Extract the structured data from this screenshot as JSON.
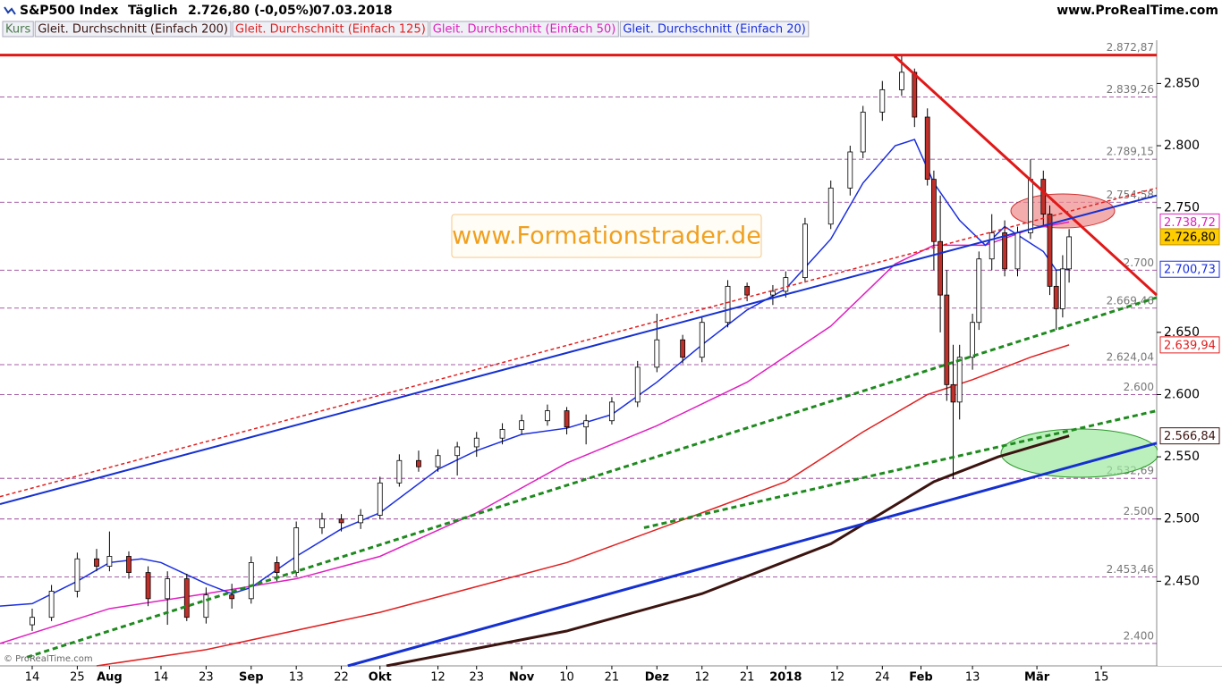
{
  "chart_data": {
    "type": "candlestick",
    "title": "S&P500 Index",
    "period": "Täglich",
    "last": "2.726,80 (-0,05%)",
    "date": "07.03.2018",
    "source": "www.ProRealTime.com",
    "watermark": "www.Formationstrader.de",
    "copyright": "© ProRealTime.com",
    "xlim": [
      -5,
      174.6
    ],
    "ylim": [
      2382,
      2874
    ],
    "xticks": [
      {
        "value": 0,
        "label": "14"
      },
      {
        "value": 7,
        "label": "25"
      },
      {
        "value": 12,
        "label": "Aug"
      },
      {
        "value": 20,
        "label": "14"
      },
      {
        "value": 27,
        "label": "23"
      },
      {
        "value": 34,
        "label": "Sep"
      },
      {
        "value": 41,
        "label": "13"
      },
      {
        "value": 48,
        "label": "22"
      },
      {
        "value": 54,
        "label": "Okt"
      },
      {
        "value": 63,
        "label": "12"
      },
      {
        "value": 69,
        "label": "23"
      },
      {
        "value": 76,
        "label": "Nov"
      },
      {
        "value": 83,
        "label": "10"
      },
      {
        "value": 90,
        "label": "21"
      },
      {
        "value": 97,
        "label": "Dez"
      },
      {
        "value": 104,
        "label": "12"
      },
      {
        "value": 111,
        "label": "21"
      },
      {
        "value": 117,
        "label": "2018"
      },
      {
        "value": 125,
        "label": "12"
      },
      {
        "value": 132,
        "label": "24"
      },
      {
        "value": 138,
        "label": "Feb"
      },
      {
        "value": 146,
        "label": "13"
      },
      {
        "value": 156,
        "label": "Mär"
      },
      {
        "value": 166,
        "label": "15"
      }
    ],
    "yticks": [
      {
        "value": 2850,
        "label": "2.850"
      },
      {
        "value": 2800,
        "label": "2.800"
      },
      {
        "value": 2750,
        "label": "2.750"
      },
      {
        "value": 2650,
        "label": "2.650"
      },
      {
        "value": 2600,
        "label": "2.600"
      },
      {
        "value": 2550,
        "label": "2.550"
      },
      {
        "value": 2500,
        "label": "2.500"
      },
      {
        "value": 2450,
        "label": "2.450"
      }
    ],
    "levels": [
      {
        "value": 2872.87,
        "label": "2.872,87"
      },
      {
        "value": 2839.26,
        "label": "2.839,26"
      },
      {
        "value": 2789.15,
        "label": "2.789,15"
      },
      {
        "value": 2754.58,
        "label": "2.754,58"
      },
      {
        "value": 2700,
        "label": "2.700"
      },
      {
        "value": 2669.46,
        "label": "2.669,46"
      },
      {
        "value": 2624.04,
        "label": "2.624,04"
      },
      {
        "value": 2600,
        "label": "2.600"
      },
      {
        "value": 2532.69,
        "label": "2.532,69"
      },
      {
        "value": 2500,
        "label": "2.500"
      },
      {
        "value": 2453.46,
        "label": "2.453,46"
      },
      {
        "value": 2400,
        "label": "2.400"
      }
    ],
    "level_color": "#8a2a8a",
    "candles": {
      "name": "Kurs",
      "up_color": "#ffffff",
      "down_color": "#c0302a",
      "last_label": "2.726,80",
      "x": [
        0,
        3,
        7,
        10,
        12,
        15,
        18,
        21,
        24,
        27,
        31,
        34,
        38,
        41,
        45,
        48,
        51,
        54,
        57,
        60,
        63,
        66,
        69,
        73,
        76,
        80,
        83,
        86,
        90,
        94,
        97,
        101,
        104,
        108,
        111,
        115,
        117,
        120,
        124,
        127,
        129,
        132,
        135,
        137,
        139,
        140,
        141,
        142,
        143,
        144,
        146,
        147,
        149,
        151,
        153,
        155,
        157,
        158,
        159,
        160,
        161
      ],
      "open": [
        2415,
        2421,
        2442,
        2468,
        2462,
        2470,
        2457,
        2436,
        2452,
        2421,
        2439,
        2436,
        2465,
        2457,
        2493,
        2500,
        2497,
        2503,
        2529,
        2547,
        2542,
        2551,
        2558,
        2565,
        2572,
        2579,
        2587,
        2574,
        2579,
        2594,
        2622,
        2644,
        2630,
        2658,
        2687,
        2680,
        2683,
        2694,
        2737,
        2766,
        2795,
        2827,
        2845,
        2859,
        2823,
        2773,
        2723,
        2680,
        2608,
        2594,
        2630,
        2658,
        2709,
        2730,
        2701,
        2730,
        2773,
        2745,
        2687,
        2669,
        2701
      ],
      "high": [
        2428,
        2447,
        2473,
        2476,
        2490,
        2474,
        2462,
        2458,
        2456,
        2445,
        2448,
        2470,
        2470,
        2498,
        2505,
        2504,
        2508,
        2534,
        2552,
        2555,
        2556,
        2562,
        2570,
        2577,
        2584,
        2592,
        2590,
        2584,
        2598,
        2627,
        2665,
        2648,
        2662,
        2692,
        2690,
        2688,
        2699,
        2742,
        2772,
        2800,
        2832,
        2852,
        2873,
        2862,
        2830,
        2780,
        2760,
        2700,
        2640,
        2640,
        2665,
        2715,
        2745,
        2740,
        2735,
        2789,
        2780,
        2752,
        2700,
        2712,
        2733
      ],
      "low": [
        2410,
        2418,
        2437,
        2458,
        2458,
        2452,
        2430,
        2415,
        2418,
        2416,
        2428,
        2432,
        2450,
        2454,
        2488,
        2490,
        2492,
        2500,
        2526,
        2538,
        2538,
        2535,
        2550,
        2560,
        2568,
        2575,
        2568,
        2560,
        2576,
        2590,
        2618,
        2625,
        2626,
        2654,
        2675,
        2672,
        2678,
        2690,
        2733,
        2760,
        2790,
        2820,
        2840,
        2815,
        2768,
        2700,
        2650,
        2595,
        2532,
        2580,
        2620,
        2652,
        2700,
        2695,
        2695,
        2725,
        2735,
        2680,
        2652,
        2662,
        2690
      ],
      "close": [
        2421,
        2442,
        2468,
        2462,
        2470,
        2457,
        2436,
        2452,
        2421,
        2439,
        2436,
        2465,
        2457,
        2493,
        2500,
        2497,
        2503,
        2529,
        2547,
        2542,
        2551,
        2558,
        2565,
        2572,
        2579,
        2587,
        2574,
        2579,
        2594,
        2622,
        2644,
        2630,
        2658,
        2687,
        2680,
        2683,
        2694,
        2737,
        2766,
        2795,
        2827,
        2845,
        2859,
        2823,
        2773,
        2723,
        2680,
        2608,
        2594,
        2630,
        2658,
        2709,
        2730,
        2701,
        2730,
        2773,
        2745,
        2687,
        2669,
        2701,
        2726.8
      ]
    },
    "series": [
      {
        "name": "Gleit. Durchschnitt (Einfach 200)",
        "color": "#3b1410",
        "width": 3,
        "badge_text": "#3b1410",
        "last_label": "2.566,84",
        "x": [
          55,
          83,
          104,
          124,
          140,
          150,
          161
        ],
        "values": [
          2382,
          2410,
          2440,
          2480,
          2530,
          2550,
          2566.84
        ]
      },
      {
        "name": "Gleit. Durchschnitt (Einfach 125)",
        "color": "#e02020",
        "width": 1.5,
        "badge_text": "#e02020",
        "last_label": "2.639,94",
        "x": [
          10,
          27,
          54,
          83,
          104,
          117,
          129,
          139,
          146,
          155,
          161
        ],
        "values": [
          2382,
          2395,
          2425,
          2465,
          2505,
          2530,
          2570,
          2600,
          2612,
          2630,
          2639.94
        ]
      },
      {
        "name": "Gleit. Durchschnitt (Einfach 50)",
        "color": "#e020c0",
        "width": 1.5,
        "badge_text": "#e020c0",
        "last_label": "2.738,72",
        "x": [
          -5,
          12,
          27,
          41,
          54,
          69,
          83,
          97,
          111,
          124,
          134,
          140,
          148,
          155,
          161
        ],
        "values": [
          2400,
          2428,
          2440,
          2452,
          2470,
          2505,
          2545,
          2575,
          2610,
          2655,
          2705,
          2720,
          2720,
          2733,
          2738.72
        ]
      },
      {
        "name": "Gleit. Durchschnitt (Einfach 20)",
        "color": "#1a2ee0",
        "width": 1.5,
        "badge_text": "#1a2ee0",
        "last_label": "2.700,73",
        "x": [
          -5,
          0,
          7,
          12,
          17,
          20,
          27,
          31,
          34,
          41,
          48,
          54,
          63,
          69,
          76,
          83,
          90,
          97,
          104,
          111,
          117,
          124,
          129,
          134,
          137,
          140,
          144,
          148,
          151,
          154,
          157,
          159,
          161
        ],
        "values": [
          2430,
          2432,
          2450,
          2465,
          2468,
          2465,
          2448,
          2440,
          2445,
          2470,
          2492,
          2505,
          2540,
          2555,
          2568,
          2573,
          2584,
          2610,
          2640,
          2668,
          2685,
          2725,
          2770,
          2800,
          2805,
          2770,
          2740,
          2720,
          2735,
          2725,
          2715,
          2700,
          2700.73
        ]
      }
    ],
    "trendlines": [
      {
        "color": "#e01818",
        "width": 3,
        "dash": "none",
        "x": [
          -5,
          174.6
        ],
        "values": [
          2872.87,
          2872.87
        ]
      },
      {
        "color": "#e01818",
        "width": 3,
        "dash": "none",
        "x": [
          133.9,
          174.6
        ],
        "values": [
          2872,
          2680
        ]
      },
      {
        "color": "#1530d0",
        "width": 2,
        "dash": "none",
        "x": [
          -5,
          174.6
        ],
        "values": [
          2512,
          2760
        ]
      },
      {
        "color": "#e02020",
        "width": 1.5,
        "dash": "4 3",
        "x": [
          -5,
          174.6
        ],
        "values": [
          2518,
          2766
        ]
      },
      {
        "color": "#1f8a1f",
        "width": 3,
        "dash": "6 4",
        "x": [
          -0.8,
          174.6
        ],
        "values": [
          2389,
          2678
        ]
      },
      {
        "color": "#1f8a1f",
        "width": 3,
        "dash": "6 4",
        "x": [
          95,
          174.6
        ],
        "values": [
          2493,
          2587
        ]
      },
      {
        "color": "#1530d0",
        "width": 3,
        "dash": "none",
        "x": [
          49,
          174.6
        ],
        "values": [
          2382,
          2561
        ]
      }
    ]
  }
}
